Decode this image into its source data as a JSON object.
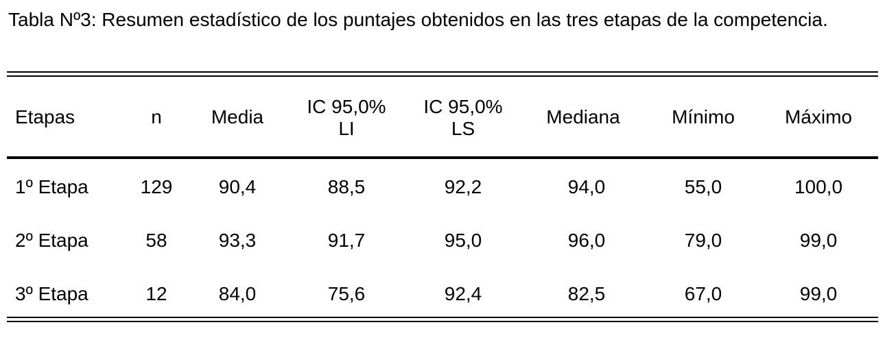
{
  "caption": "Tabla Nº3: Resumen estadístico de los puntajes obtenidos en las tres etapas de la competencia.",
  "table": {
    "headers": [
      {
        "line1": "Etapas",
        "line2": ""
      },
      {
        "line1": "n",
        "line2": ""
      },
      {
        "line1": "Media",
        "line2": ""
      },
      {
        "line1": "IC 95,0%",
        "line2": "LI"
      },
      {
        "line1": "IC 95,0%",
        "line2": "LS"
      },
      {
        "line1": "Mediana",
        "line2": ""
      },
      {
        "line1": "Mínimo",
        "line2": ""
      },
      {
        "line1": "Máximo",
        "line2": ""
      }
    ],
    "rows": [
      [
        "1º Etapa",
        "129",
        "90,4",
        "88,5",
        "92,2",
        "94,0",
        "55,0",
        "100,0"
      ],
      [
        "2º Etapa",
        "58",
        "93,3",
        "91,7",
        "95,0",
        "96,0",
        "79,0",
        "99,0"
      ],
      [
        "3º Etapa",
        "12",
        "84,0",
        "75,6",
        "92,4",
        "82,5",
        "67,0",
        "99,0"
      ]
    ]
  }
}
